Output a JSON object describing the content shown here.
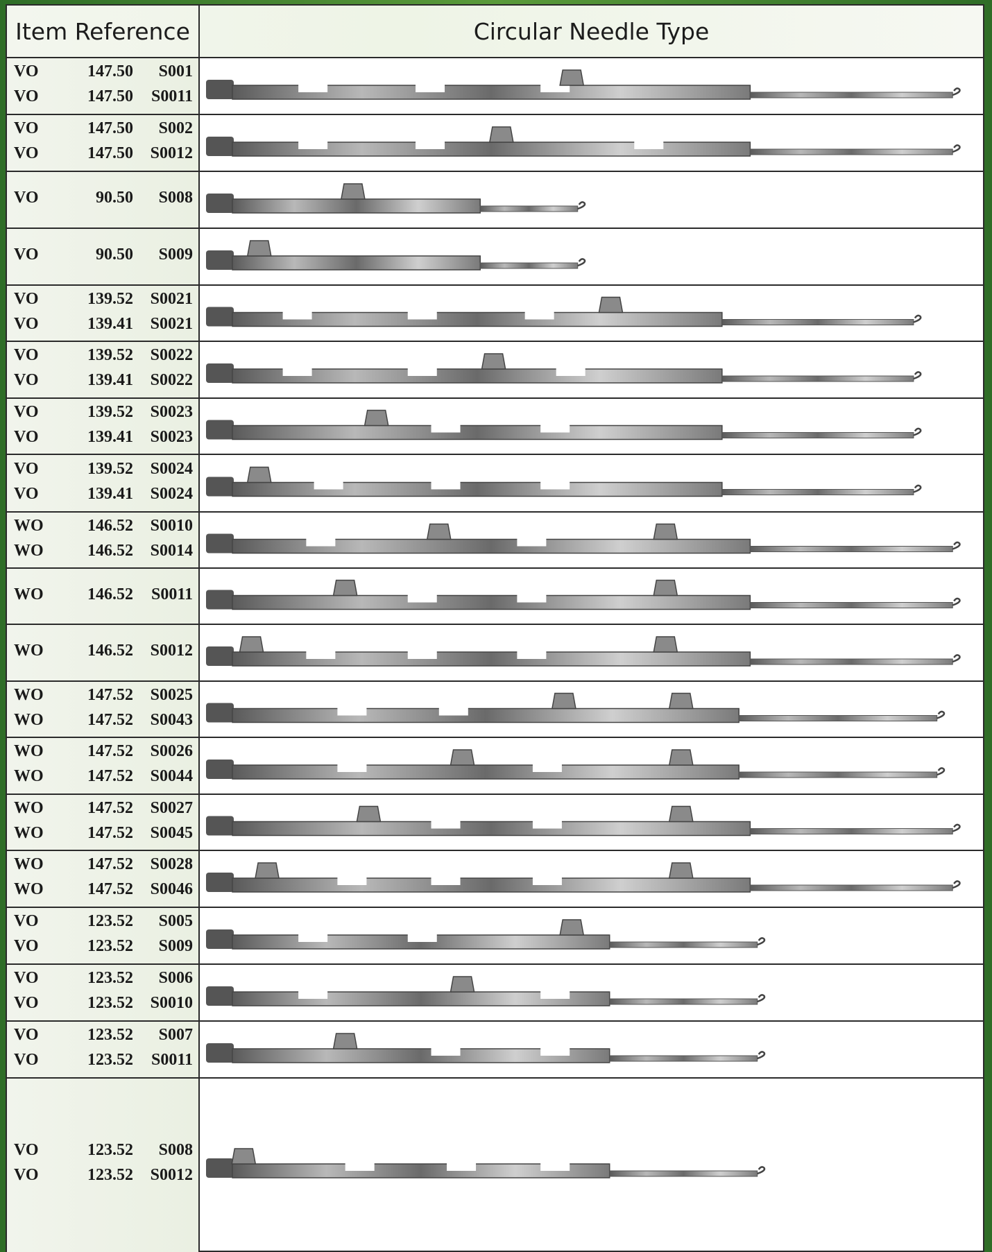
{
  "header": {
    "item_reference": "Item Reference",
    "circular_needle_type": "Circular Needle Type"
  },
  "rows": [
    {
      "refs": [
        [
          "VO",
          "147.50",
          "S001"
        ],
        [
          "VO",
          "147.50",
          "S0011"
        ]
      ],
      "needle": {
        "length": 0.97,
        "butts": [
          0.43
        ],
        "tricks": [
          0.12,
          0.27,
          0.43
        ]
      }
    },
    {
      "refs": [
        [
          "VO",
          "147.50",
          "S002"
        ],
        [
          "VO",
          "147.50",
          "S0012"
        ]
      ],
      "needle": {
        "length": 0.97,
        "butts": [
          0.34
        ],
        "tricks": [
          0.12,
          0.27,
          0.55
        ]
      }
    },
    {
      "refs": [
        [
          "VO",
          "90.50",
          "S008"
        ]
      ],
      "needle": {
        "length": 0.49,
        "butts": [
          0.15
        ],
        "tricks": []
      }
    },
    {
      "refs": [
        [
          "VO",
          "90.50",
          "S009"
        ]
      ],
      "needle": {
        "length": 0.49,
        "butts": [
          0.03
        ],
        "tricks": []
      }
    },
    {
      "refs": [
        [
          "VO",
          "139.52",
          "S0021"
        ],
        [
          "VO",
          "139.41",
          "S0021"
        ]
      ],
      "needle": {
        "length": 0.92,
        "butts": [
          0.48
        ],
        "tricks": [
          0.1,
          0.26,
          0.41
        ]
      }
    },
    {
      "refs": [
        [
          "VO",
          "139.52",
          "S0022"
        ],
        [
          "VO",
          "139.41",
          "S0022"
        ]
      ],
      "needle": {
        "length": 0.92,
        "butts": [
          0.33
        ],
        "tricks": [
          0.1,
          0.26,
          0.45
        ]
      }
    },
    {
      "refs": [
        [
          "VO",
          "139.52",
          "S0023"
        ],
        [
          "VO",
          "139.41",
          "S0023"
        ]
      ],
      "needle": {
        "length": 0.92,
        "butts": [
          0.18
        ],
        "tricks": [
          0.29,
          0.43
        ]
      }
    },
    {
      "refs": [
        [
          "VO",
          "139.52",
          "S0024"
        ],
        [
          "VO",
          "139.41",
          "S0024"
        ]
      ],
      "needle": {
        "length": 0.92,
        "butts": [
          0.03
        ],
        "tricks": [
          0.14,
          0.29,
          0.43
        ]
      }
    },
    {
      "refs": [
        [
          "WO",
          "146.52",
          "S0010"
        ],
        [
          "WO",
          "146.52",
          "S0014"
        ]
      ],
      "needle": {
        "length": 0.97,
        "butts": [
          0.26,
          0.55
        ],
        "tricks": [
          0.13,
          0.4
        ]
      }
    },
    {
      "refs": [
        [
          "WO",
          "146.52",
          "S0011"
        ]
      ],
      "needle": {
        "length": 0.97,
        "butts": [
          0.14,
          0.55
        ],
        "tricks": [
          0.26,
          0.4
        ]
      }
    },
    {
      "refs": [
        [
          "WO",
          "146.52",
          "S0012"
        ]
      ],
      "needle": {
        "length": 0.97,
        "butts": [
          0.02,
          0.55
        ],
        "tricks": [
          0.13,
          0.26,
          0.4
        ]
      }
    },
    {
      "refs": [
        [
          "WO",
          "147.52",
          "S0025"
        ],
        [
          "WO",
          "147.52",
          "S0043"
        ]
      ],
      "needle": {
        "length": 0.95,
        "butts": [
          0.42,
          0.57
        ],
        "tricks": [
          0.17,
          0.3
        ]
      }
    },
    {
      "refs": [
        [
          "WO",
          "147.52",
          "S0026"
        ],
        [
          "WO",
          "147.52",
          "S0044"
        ]
      ],
      "needle": {
        "length": 0.95,
        "butts": [
          0.29,
          0.57
        ],
        "tricks": [
          0.17,
          0.42
        ]
      }
    },
    {
      "refs": [
        [
          "WO",
          "147.52",
          "S0027"
        ],
        [
          "WO",
          "147.52",
          "S0045"
        ]
      ],
      "needle": {
        "length": 0.97,
        "butts": [
          0.17,
          0.57
        ],
        "tricks": [
          0.29,
          0.42
        ]
      }
    },
    {
      "refs": [
        [
          "WO",
          "147.52",
          "S0028"
        ],
        [
          "WO",
          "147.52",
          "S0046"
        ]
      ],
      "needle": {
        "length": 0.97,
        "butts": [
          0.04,
          0.57
        ],
        "tricks": [
          0.17,
          0.29,
          0.42
        ]
      }
    },
    {
      "refs": [
        [
          "VO",
          "123.52",
          "S005"
        ],
        [
          "VO",
          "123.52",
          "S009"
        ]
      ],
      "needle": {
        "length": 0.72,
        "butts": [
          0.43
        ],
        "tricks": [
          0.12,
          0.26
        ]
      }
    },
    {
      "refs": [
        [
          "VO",
          "123.52",
          "S006"
        ],
        [
          "VO",
          "123.52",
          "S0010"
        ]
      ],
      "needle": {
        "length": 0.72,
        "butts": [
          0.29
        ],
        "tricks": [
          0.12,
          0.43
        ]
      }
    },
    {
      "refs": [
        [
          "VO",
          "123.52",
          "S007"
        ],
        [
          "VO",
          "123.52",
          "S0011"
        ]
      ],
      "needle": {
        "length": 0.72,
        "butts": [
          0.14
        ],
        "tricks": [
          0.29,
          0.43
        ]
      }
    },
    {
      "refs": [
        [
          "VO",
          "123.52",
          "S008"
        ],
        [
          "VO",
          "123.52",
          "S0012"
        ]
      ],
      "needle": {
        "length": 0.72,
        "butts": [
          0.01
        ],
        "tricks": [
          0.18,
          0.31,
          0.43
        ]
      }
    }
  ]
}
